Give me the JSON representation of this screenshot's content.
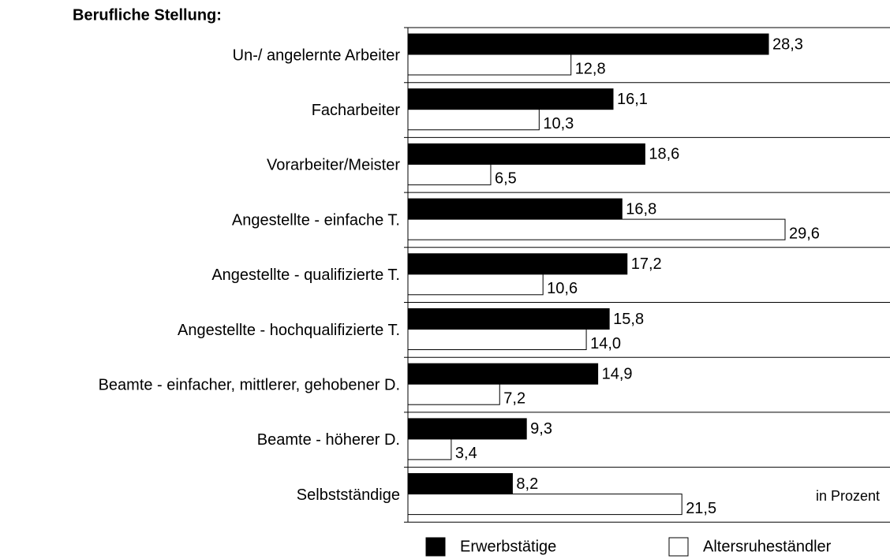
{
  "chart_data": {
    "type": "bar",
    "orientation": "horizontal",
    "title": "Berufliche Stellung:",
    "annotation": "in Prozent",
    "categories": [
      "Un-/ angelernte Arbeiter",
      "Facharbeiter",
      "Vorarbeiter/Meister",
      "Angestellte - einfache T.",
      "Angestellte - qualifizierte T.",
      "Angestellte - hochqualifizierte T.",
      "Beamte - einfacher, mittlerer, gehobener D.",
      "Beamte - höherer D.",
      "Selbstständige"
    ],
    "series": [
      {
        "name": "Erwerbstätige",
        "color": "#000000",
        "values": [
          28.3,
          16.1,
          18.6,
          16.8,
          17.2,
          15.8,
          14.9,
          9.3,
          8.2
        ],
        "value_labels": [
          "28,3",
          "16,1",
          "18,6",
          "16,8",
          "17,2",
          "15,8",
          "14,9",
          "9,3",
          "8,2"
        ]
      },
      {
        "name": "Altersruheständler",
        "color": "#ffffff",
        "values": [
          12.8,
          10.3,
          6.5,
          29.6,
          10.6,
          14.0,
          7.2,
          3.4,
          21.5
        ],
        "value_labels": [
          "12,8",
          "10,3",
          "6,5",
          "29,6",
          "10,6",
          "14,0",
          "7,2",
          "3,4",
          "21,5"
        ]
      }
    ],
    "legend": "bottom"
  }
}
